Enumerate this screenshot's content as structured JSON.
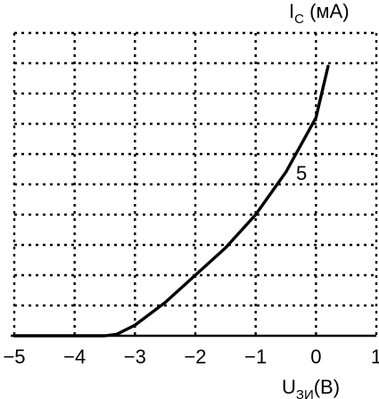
{
  "chart_data": {
    "type": "line",
    "title": "",
    "ylabel": {
      "base": "I",
      "sub": "C",
      "unit": " (мА)"
    },
    "xlabel": {
      "base": "U",
      "sub": "ЗИ",
      "unit": "(В)"
    },
    "xlim": [
      -5,
      1
    ],
    "ylim": [
      0,
      10
    ],
    "x_ticks": [
      -5,
      -4,
      -3,
      -2,
      -1,
      0,
      1
    ],
    "x_tick_labels": [
      "−5",
      "−4",
      "−3",
      "−2",
      "−1",
      "0",
      "1"
    ],
    "y_tick_label": {
      "value": 5,
      "text": "5"
    },
    "grid": true,
    "grid_style": "dotted",
    "series": [
      {
        "x": [
          -5,
          -4,
          -3.5,
          -3.3,
          -3,
          -2.5,
          -2,
          -1.5,
          -1,
          -0.5,
          0,
          0.2
        ],
        "y": [
          0,
          0,
          0,
          0.05,
          0.35,
          1.1,
          2.0,
          2.9,
          4.0,
          5.4,
          7.2,
          8.9
        ]
      }
    ]
  }
}
